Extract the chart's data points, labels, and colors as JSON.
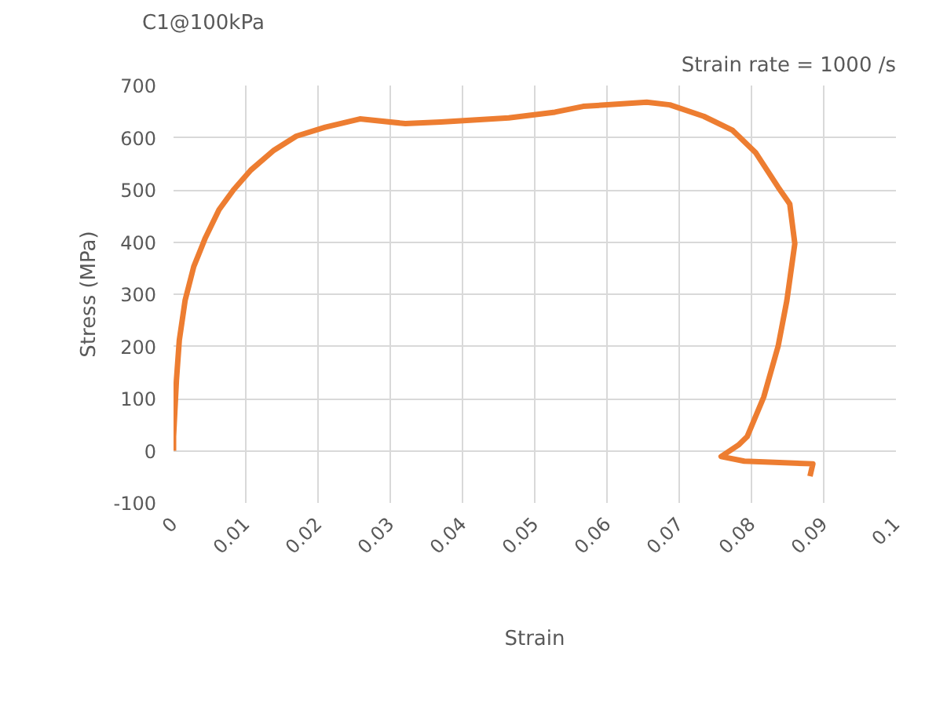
{
  "chart_data": {
    "type": "line",
    "title": "C1@100kPa",
    "subtitle": "Strain rate = 1000 /s",
    "xlabel": "Strain",
    "ylabel": "Stress (MPa)",
    "x": [
      0,
      0,
      0.0004,
      0.0008,
      0.0016,
      0.0028,
      0.0044,
      0.0063,
      0.0083,
      0.0107,
      0.0139,
      0.017,
      0.021,
      0.0258,
      0.0321,
      0.037,
      0.0464,
      0.0528,
      0.0567,
      0.0655,
      0.0687,
      0.0734,
      0.0774,
      0.0806,
      0.0837,
      0.0853,
      0.086,
      0.0849,
      0.0837,
      0.0817,
      0.0794,
      0.0782,
      0.0758,
      0.079,
      0.0885,
      0.0881
    ],
    "series": [
      {
        "color": "#ed7d31",
        "values": [
          0,
          27,
          135,
          212,
          288,
          353,
          408,
          462,
          500,
          538,
          576,
          603,
          620,
          636,
          627,
          630,
          638,
          649,
          660,
          668,
          663,
          641,
          614,
          571,
          505,
          473,
          397,
          288,
          201,
          103,
          27,
          11,
          -11,
          -20,
          -25,
          -49
        ]
      }
    ],
    "xlim": [
      0,
      0.1
    ],
    "ylim": [
      -100,
      700
    ],
    "xticks": [
      0,
      0.01,
      0.02,
      0.03,
      0.04,
      0.05,
      0.06,
      0.07,
      0.08,
      0.09,
      0.1
    ],
    "yticks": [
      -100,
      0,
      100,
      200,
      300,
      400,
      500,
      600,
      700
    ],
    "grid": true,
    "marker": "none",
    "line_style": "solid"
  }
}
